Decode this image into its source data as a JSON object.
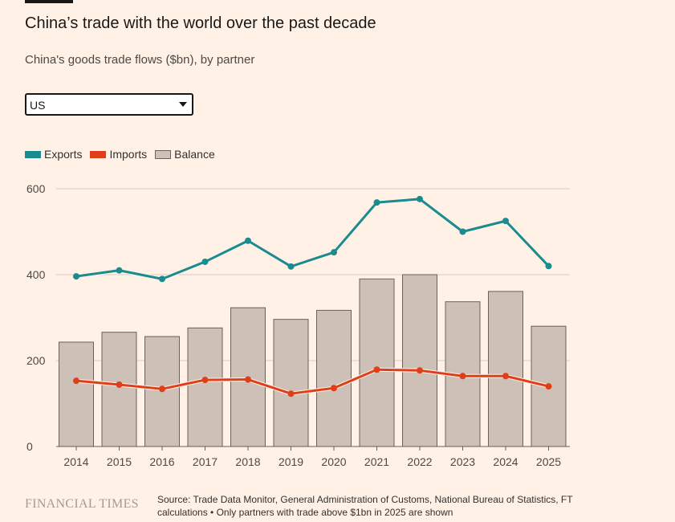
{
  "header": {
    "title": "China’s trade with the world over the past decade",
    "subtitle": "China's goods trade flows ($bn), by partner"
  },
  "partner_select": {
    "selected": "US"
  },
  "legend": [
    {
      "label": "Exports",
      "color": "#1a8b8f"
    },
    {
      "label": "Imports",
      "color": "#e03e1a"
    },
    {
      "label": "Balance",
      "color": "#cdc0b6"
    }
  ],
  "chart_data": {
    "type": "bar",
    "title": "China's goods trade flows ($bn), by partner",
    "categories": [
      "2014",
      "2015",
      "2016",
      "2017",
      "2018",
      "2019",
      "2020",
      "2021",
      "2022",
      "2023",
      "2024",
      "2025"
    ],
    "series": [
      {
        "name": "Balance",
        "type": "bar",
        "color": "#cdc0b6",
        "values": [
          243,
          266,
          256,
          276,
          323,
          296,
          317,
          390,
          400,
          337,
          361,
          280
        ]
      },
      {
        "name": "Exports",
        "type": "line",
        "color": "#1a8b8f",
        "values": [
          396,
          410,
          390,
          430,
          479,
          419,
          452,
          568,
          576,
          500,
          525,
          420
        ]
      },
      {
        "name": "Imports",
        "type": "line",
        "color": "#e03e1a",
        "values": [
          153,
          144,
          134,
          155,
          156,
          123,
          136,
          179,
          177,
          164,
          164,
          140
        ]
      }
    ],
    "yticks": [
      0,
      200,
      400,
      600
    ],
    "ylim": [
      0,
      600
    ],
    "xlabel": "",
    "ylabel": "",
    "grid": true,
    "legend_position": "top-left"
  },
  "footer": {
    "brand": "FINANCIAL TIMES",
    "source": "Source: Trade Data Monitor, General Administration of Customs, National Bureau of Statistics, FT calculations • Only partners with trade above $1bn in 2025 are shown"
  }
}
